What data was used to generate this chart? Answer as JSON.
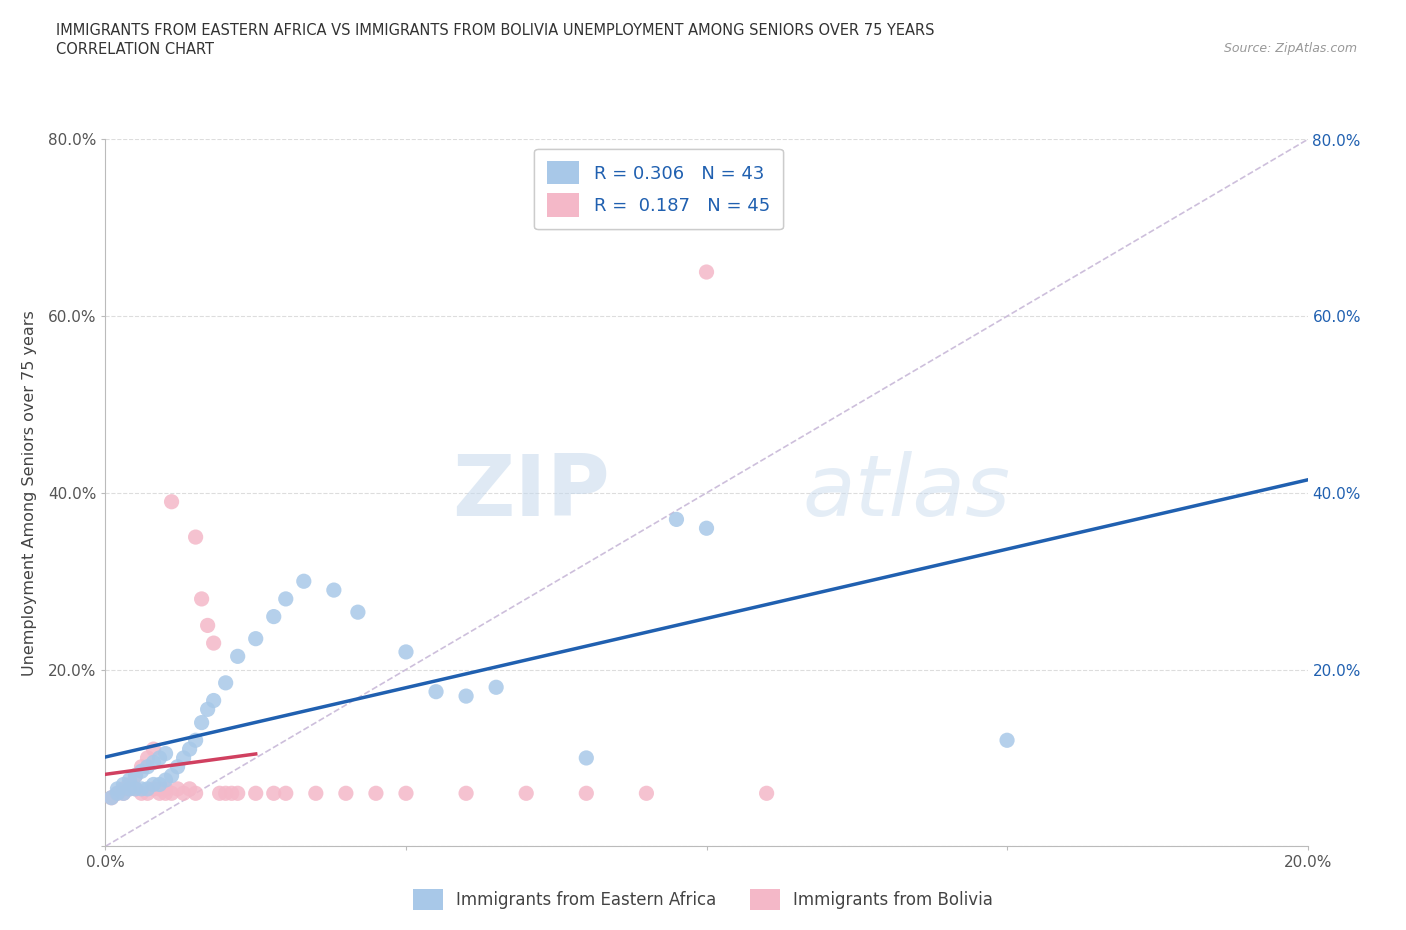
{
  "title_line1": "IMMIGRANTS FROM EASTERN AFRICA VS IMMIGRANTS FROM BOLIVIA UNEMPLOYMENT AMONG SENIORS OVER 75 YEARS",
  "title_line2": "CORRELATION CHART",
  "source": "Source: ZipAtlas.com",
  "ylabel": "Unemployment Among Seniors over 75 years",
  "xlim": [
    0.0,
    0.2
  ],
  "ylim": [
    0.0,
    0.8
  ],
  "x_ticks": [
    0.0,
    0.05,
    0.1,
    0.15,
    0.2
  ],
  "x_tick_labels": [
    "0.0%",
    "",
    "",
    "",
    "20.0%"
  ],
  "y_ticks": [
    0.0,
    0.2,
    0.4,
    0.6,
    0.8
  ],
  "y_tick_labels_left": [
    "",
    "20.0%",
    "40.0%",
    "60.0%",
    "80.0%"
  ],
  "y_tick_labels_right": [
    "",
    "20.0%",
    "40.0%",
    "60.0%",
    "80.0%"
  ],
  "R_blue": 0.306,
  "N_blue": 43,
  "R_pink": 0.187,
  "N_pink": 45,
  "legend_label_blue": "Immigrants from Eastern Africa",
  "legend_label_pink": "Immigrants from Bolivia",
  "watermark_zip": "ZIP",
  "watermark_atlas": "atlas",
  "blue_scatter_color": "#a8c8e8",
  "pink_scatter_color": "#f4b8c8",
  "blue_line_color": "#2060b0",
  "pink_line_color": "#d04060",
  "diag_line_color": "#c8b8d8",
  "scatter_blue_x": [
    0.001,
    0.002,
    0.002,
    0.003,
    0.003,
    0.004,
    0.004,
    0.005,
    0.005,
    0.006,
    0.006,
    0.007,
    0.007,
    0.008,
    0.008,
    0.009,
    0.009,
    0.01,
    0.01,
    0.011,
    0.012,
    0.013,
    0.014,
    0.015,
    0.016,
    0.017,
    0.018,
    0.02,
    0.022,
    0.025,
    0.028,
    0.03,
    0.033,
    0.038,
    0.042,
    0.05,
    0.055,
    0.06,
    0.065,
    0.08,
    0.095,
    0.1,
    0.15
  ],
  "scatter_blue_y": [
    0.055,
    0.06,
    0.065,
    0.06,
    0.07,
    0.065,
    0.075,
    0.065,
    0.08,
    0.065,
    0.085,
    0.065,
    0.09,
    0.07,
    0.095,
    0.07,
    0.1,
    0.075,
    0.105,
    0.08,
    0.09,
    0.1,
    0.11,
    0.12,
    0.14,
    0.155,
    0.165,
    0.185,
    0.215,
    0.235,
    0.26,
    0.28,
    0.3,
    0.29,
    0.265,
    0.22,
    0.175,
    0.17,
    0.18,
    0.1,
    0.37,
    0.36,
    0.12
  ],
  "scatter_pink_x": [
    0.001,
    0.002,
    0.003,
    0.003,
    0.004,
    0.004,
    0.005,
    0.005,
    0.006,
    0.006,
    0.007,
    0.007,
    0.008,
    0.008,
    0.009,
    0.009,
    0.01,
    0.01,
    0.011,
    0.011,
    0.012,
    0.013,
    0.014,
    0.015,
    0.015,
    0.016,
    0.017,
    0.018,
    0.019,
    0.02,
    0.021,
    0.022,
    0.025,
    0.028,
    0.03,
    0.035,
    0.04,
    0.045,
    0.05,
    0.06,
    0.07,
    0.08,
    0.09,
    0.1,
    0.11
  ],
  "scatter_pink_y": [
    0.055,
    0.06,
    0.06,
    0.065,
    0.065,
    0.07,
    0.065,
    0.08,
    0.06,
    0.09,
    0.06,
    0.1,
    0.065,
    0.11,
    0.06,
    0.065,
    0.06,
    0.065,
    0.06,
    0.39,
    0.065,
    0.06,
    0.065,
    0.06,
    0.35,
    0.28,
    0.25,
    0.23,
    0.06,
    0.06,
    0.06,
    0.06,
    0.06,
    0.06,
    0.06,
    0.06,
    0.06,
    0.06,
    0.06,
    0.06,
    0.06,
    0.06,
    0.06,
    0.65,
    0.06
  ]
}
